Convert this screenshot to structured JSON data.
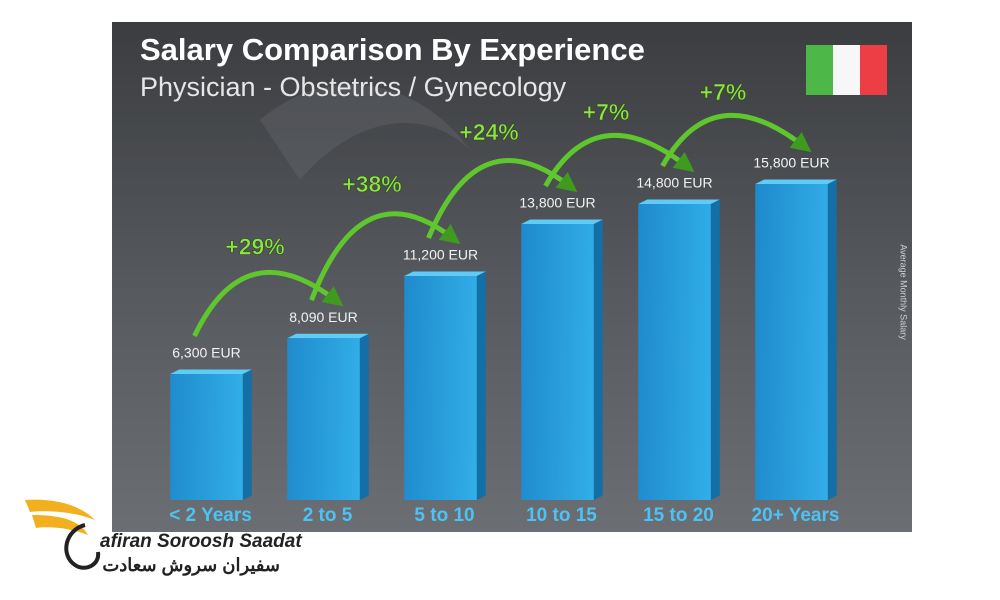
{
  "chart_data": {
    "type": "bar",
    "title": "Salary Comparison By Experience",
    "subtitle": "Physician - Obstetrics / Gynecology",
    "y_axis_label": "Average Monthly Salary",
    "categories": [
      "< 2 Years",
      "2 to 5",
      "5 to 10",
      "10 to 15",
      "15 to 20",
      "20+ Years"
    ],
    "values": [
      6300,
      8090,
      11200,
      13800,
      14800,
      15800
    ],
    "value_labels": [
      "6,300 EUR",
      "8,090 EUR",
      "11,200 EUR",
      "13,800 EUR",
      "14,800 EUR",
      "15,800 EUR"
    ],
    "increases": [
      "+29%",
      "+38%",
      "+24%",
      "+7%",
      "+7%"
    ],
    "color": "#1f9de0",
    "ylim": [
      0,
      16000
    ]
  },
  "logo": {
    "latin": "afiran Soroosh Saadat",
    "persian": "سفیران سروش سعادت"
  }
}
